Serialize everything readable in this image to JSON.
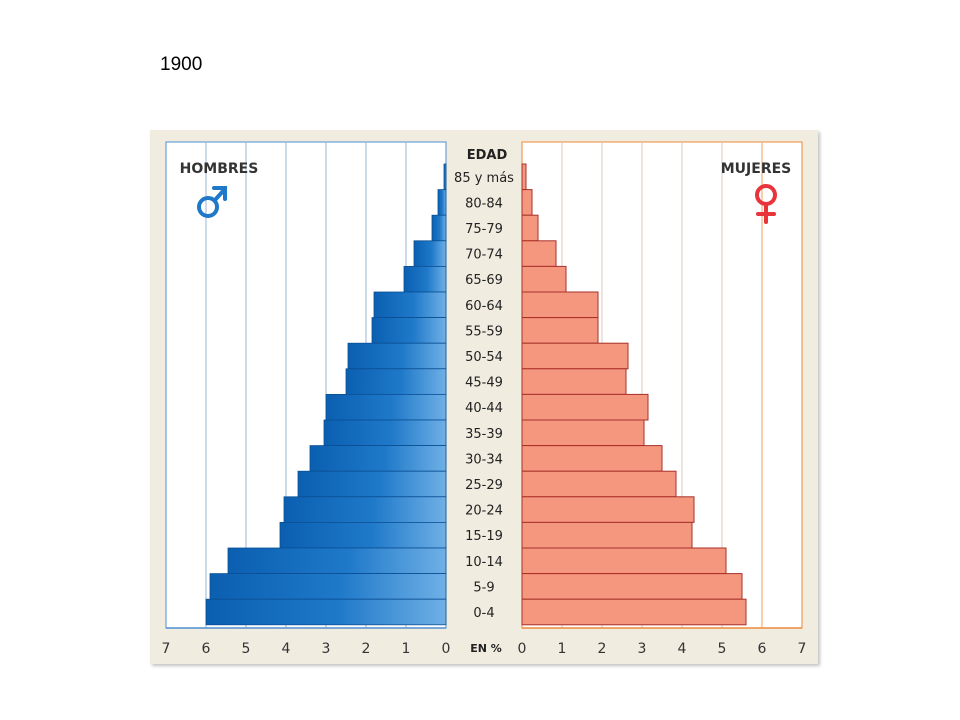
{
  "slide": {
    "title": "1900"
  },
  "chart_data": {
    "type": "bar",
    "subtype": "population-pyramid",
    "title": "",
    "center_header": "EDAD",
    "xlabel": "EN %",
    "xlim": [
      0,
      7
    ],
    "ticks": [
      "0",
      "1",
      "2",
      "3",
      "4",
      "5",
      "6",
      "7"
    ],
    "grid": true,
    "categories": [
      "85 y más",
      "80-84",
      "75-79",
      "70-74",
      "65-69",
      "60-64",
      "55-59",
      "50-54",
      "45-49",
      "40-44",
      "35-39",
      "30-34",
      "25-29",
      "20-24",
      "15-19",
      "10-14",
      "5-9",
      "0-4"
    ],
    "series": [
      {
        "name": "HOMBRES",
        "side": "left",
        "symbol": "male-symbol-icon",
        "color": "#1a6fbf",
        "values": [
          0.05,
          0.2,
          0.35,
          0.8,
          1.05,
          1.8,
          1.85,
          2.45,
          2.5,
          3.0,
          3.05,
          3.4,
          3.7,
          4.05,
          4.15,
          5.45,
          5.9,
          6.0
        ]
      },
      {
        "name": "MUJERES",
        "side": "right",
        "symbol": "female-symbol-icon",
        "color": "#f4977e",
        "values": [
          0.1,
          0.25,
          0.4,
          0.85,
          1.1,
          1.9,
          1.9,
          2.65,
          2.6,
          3.15,
          3.05,
          3.5,
          3.85,
          4.3,
          4.25,
          5.1,
          5.5,
          5.6
        ]
      }
    ],
    "colors": {
      "background": "#f0ece0",
      "left_grid": "#4f8fd0",
      "right_grid": "#ee8a3a",
      "male_icon": "#1f78c8",
      "female_icon": "#e8343b",
      "female_bar_stroke": "#a8302a"
    }
  }
}
